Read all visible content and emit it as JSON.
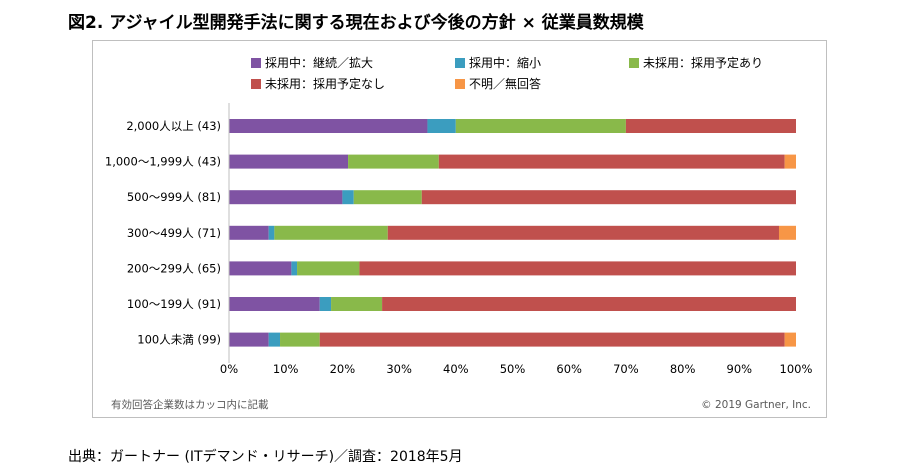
{
  "title": "図2. アジャイル型開発手法に関する現在および今後の方針 × 従業員数規模",
  "source": "出典：ガートナー (ITデマンド・リサーチ)／調査：2018年5月",
  "note": "有効回答企業数はカッコ内に記載",
  "copyright": "© 2019 Gartner, Inc.",
  "chart_data": {
    "type": "bar",
    "orientation": "horizontal",
    "stacked": true,
    "categories": [
      "2,000人以上 (43)",
      "1,000～1,999人 (43)",
      "500～999人 (81)",
      "300～499人 (71)",
      "200～299人 (65)",
      "100～199人 (91)",
      "100人未満 (99)"
    ],
    "series": [
      {
        "name": "採用中：継続／拡大",
        "color": "#7f53a3",
        "values": [
          35,
          21,
          20,
          7,
          11,
          16,
          7
        ]
      },
      {
        "name": "採用中：縮小",
        "color": "#3b9dbf",
        "values": [
          5,
          0,
          2,
          1,
          1,
          2,
          2
        ]
      },
      {
        "name": "未採用：採用予定あり",
        "color": "#89b94a",
        "values": [
          30,
          16,
          12,
          20,
          11,
          9,
          7
        ]
      },
      {
        "name": "未採用：採用予定なし",
        "color": "#c0504d",
        "values": [
          30,
          61,
          66,
          69,
          77,
          73,
          82
        ]
      },
      {
        "name": "不明／無回答",
        "color": "#f79646",
        "values": [
          0,
          2,
          0,
          3,
          0,
          0,
          2
        ]
      }
    ],
    "xlim": [
      0,
      100
    ],
    "x_ticks": [
      "0%",
      "10%",
      "20%",
      "30%",
      "40%",
      "50%",
      "60%",
      "70%",
      "80%",
      "90%",
      "100%"
    ],
    "legend_position": "top",
    "grid": false
  }
}
